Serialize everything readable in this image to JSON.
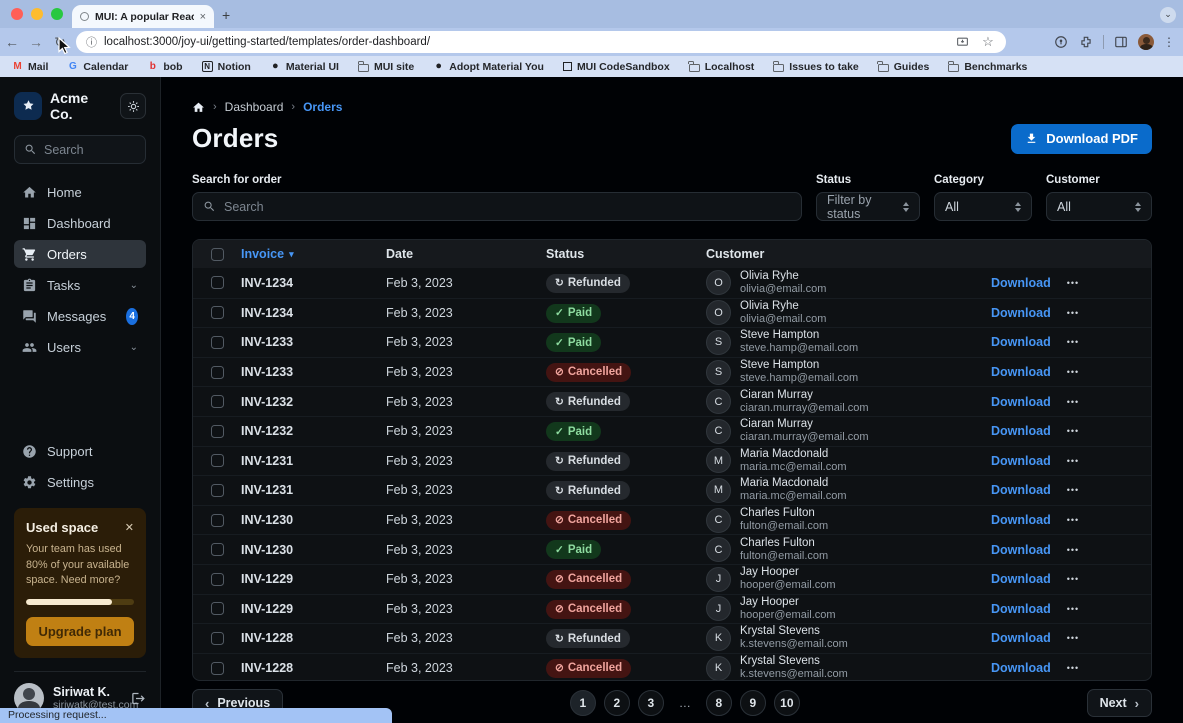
{
  "browser": {
    "tab_title": "MUI: A popular React UI fram",
    "url": "localhost:3000/joy-ui/getting-started/templates/order-dashboard/",
    "bookmarks": [
      {
        "label": "Mail",
        "icon": "gmail-icon"
      },
      {
        "label": "Calendar",
        "icon": "google-calendar-icon"
      },
      {
        "label": "bob",
        "icon": "bob-icon"
      },
      {
        "label": "Notion",
        "icon": "notion-icon"
      },
      {
        "label": "Material UI",
        "icon": "github-icon"
      },
      {
        "label": "MUI site",
        "icon": "folder-icon"
      },
      {
        "label": "Adopt Material You",
        "icon": "github-icon"
      },
      {
        "label": "MUI CodeSandbox",
        "icon": "codesandbox-icon"
      },
      {
        "label": "Localhost",
        "icon": "folder-icon"
      },
      {
        "label": "Issues to take",
        "icon": "folder-icon"
      },
      {
        "label": "Guides",
        "icon": "folder-icon"
      },
      {
        "label": "Benchmarks",
        "icon": "folder-icon"
      }
    ],
    "status_bar": "Processing request..."
  },
  "sidebar": {
    "brand": "Acme Co.",
    "search_placeholder": "Search",
    "nav": [
      {
        "label": "Home"
      },
      {
        "label": "Dashboard"
      },
      {
        "label": "Orders",
        "selected": true
      },
      {
        "label": "Tasks",
        "chevron": true
      },
      {
        "label": "Messages",
        "badge": "4"
      },
      {
        "label": "Users",
        "chevron": true
      }
    ],
    "support_label": "Support",
    "settings_label": "Settings",
    "usage_card": {
      "title": "Used space",
      "body": "Your team has used 80% of your available space. Need more?",
      "percent_used": 80,
      "button_label": "Upgrade plan"
    },
    "user": {
      "name": "Siriwat K.",
      "email": "siriwatk@test.com"
    }
  },
  "main": {
    "breadcrumb": {
      "item1": "Dashboard",
      "item2": "Orders"
    },
    "title": "Orders",
    "download_pdf_label": "Download PDF",
    "filters": {
      "search_label": "Search for order",
      "search_placeholder": "Search",
      "status_label": "Status",
      "status_value": "Filter by status",
      "category_label": "Category",
      "category_value": "All",
      "customer_label": "Customer",
      "customer_value": "All"
    },
    "table": {
      "columns": {
        "invoice": "Invoice",
        "date": "Date",
        "status": "Status",
        "customer": "Customer"
      },
      "download_label": "Download",
      "rows": [
        {
          "invoice": "INV-1234",
          "date": "Feb 3, 2023",
          "status": "Refunded",
          "status_type": "refunded",
          "status_icon": "autorenew-icon",
          "customer": {
            "initial": "O",
            "name": "Olivia Ryhe",
            "email": "olivia@email.com"
          }
        },
        {
          "invoice": "INV-1234",
          "date": "Feb 3, 2023",
          "status": "Paid",
          "status_type": "paid",
          "status_icon": "check-icon",
          "customer": {
            "initial": "O",
            "name": "Olivia Ryhe",
            "email": "olivia@email.com"
          }
        },
        {
          "invoice": "INV-1233",
          "date": "Feb 3, 2023",
          "status": "Paid",
          "status_type": "paid",
          "status_icon": "check-icon",
          "customer": {
            "initial": "S",
            "name": "Steve Hampton",
            "email": "steve.hamp@email.com"
          }
        },
        {
          "invoice": "INV-1233",
          "date": "Feb 3, 2023",
          "status": "Cancelled",
          "status_type": "cancelled",
          "status_icon": "block-icon",
          "customer": {
            "initial": "S",
            "name": "Steve Hampton",
            "email": "steve.hamp@email.com"
          }
        },
        {
          "invoice": "INV-1232",
          "date": "Feb 3, 2023",
          "status": "Refunded",
          "status_type": "refunded",
          "status_icon": "autorenew-icon",
          "customer": {
            "initial": "C",
            "name": "Ciaran Murray",
            "email": "ciaran.murray@email.com"
          }
        },
        {
          "invoice": "INV-1232",
          "date": "Feb 3, 2023",
          "status": "Paid",
          "status_type": "paid",
          "status_icon": "check-icon",
          "customer": {
            "initial": "C",
            "name": "Ciaran Murray",
            "email": "ciaran.murray@email.com"
          }
        },
        {
          "invoice": "INV-1231",
          "date": "Feb 3, 2023",
          "status": "Refunded",
          "status_type": "refunded",
          "status_icon": "autorenew-icon",
          "customer": {
            "initial": "M",
            "name": "Maria Macdonald",
            "email": "maria.mc@email.com"
          }
        },
        {
          "invoice": "INV-1231",
          "date": "Feb 3, 2023",
          "status": "Refunded",
          "status_type": "refunded",
          "status_icon": "autorenew-icon",
          "customer": {
            "initial": "M",
            "name": "Maria Macdonald",
            "email": "maria.mc@email.com"
          }
        },
        {
          "invoice": "INV-1230",
          "date": "Feb 3, 2023",
          "status": "Cancelled",
          "status_type": "cancelled",
          "status_icon": "block-icon",
          "customer": {
            "initial": "C",
            "name": "Charles Fulton",
            "email": "fulton@email.com"
          }
        },
        {
          "invoice": "INV-1230",
          "date": "Feb 3, 2023",
          "status": "Paid",
          "status_type": "paid",
          "status_icon": "check-icon",
          "customer": {
            "initial": "C",
            "name": "Charles Fulton",
            "email": "fulton@email.com"
          }
        },
        {
          "invoice": "INV-1229",
          "date": "Feb 3, 2023",
          "status": "Cancelled",
          "status_type": "cancelled",
          "status_icon": "block-icon",
          "customer": {
            "initial": "J",
            "name": "Jay Hooper",
            "email": "hooper@email.com"
          }
        },
        {
          "invoice": "INV-1229",
          "date": "Feb 3, 2023",
          "status": "Cancelled",
          "status_type": "cancelled",
          "status_icon": "block-icon",
          "customer": {
            "initial": "J",
            "name": "Jay Hooper",
            "email": "hooper@email.com"
          }
        },
        {
          "invoice": "INV-1228",
          "date": "Feb 3, 2023",
          "status": "Refunded",
          "status_type": "refunded",
          "status_icon": "autorenew-icon",
          "customer": {
            "initial": "K",
            "name": "Krystal Stevens",
            "email": "k.stevens@email.com"
          }
        },
        {
          "invoice": "INV-1228",
          "date": "Feb 3, 2023",
          "status": "Cancelled",
          "status_type": "cancelled",
          "status_icon": "block-icon",
          "customer": {
            "initial": "K",
            "name": "Krystal Stevens",
            "email": "k.stevens@email.com"
          }
        }
      ]
    },
    "pagination": {
      "previous_label": "Previous",
      "next_label": "Next",
      "pages": [
        {
          "label": "1",
          "type": "current"
        },
        {
          "label": "2",
          "type": "page"
        },
        {
          "label": "3",
          "type": "page"
        },
        {
          "label": "…",
          "type": "ellipsis"
        },
        {
          "label": "8",
          "type": "page"
        },
        {
          "label": "9",
          "type": "page"
        },
        {
          "label": "10",
          "type": "page"
        }
      ]
    }
  },
  "icons": {
    "gmail-icon": "M",
    "google-calendar-icon": "G",
    "bob-icon": "b",
    "notion-icon": "N",
    "github-icon": "●",
    "codesandbox-icon": "",
    "folder-icon": "",
    "close": "×",
    "new_tab": "+",
    "tab_chevron": "⌄",
    "back": "←",
    "forward": "→",
    "reload": "↻",
    "info": "ⓘ",
    "star": "☆",
    "menu_dots": "⋮",
    "more": "•••",
    "sort": "▾",
    "sep": "›",
    "prev": "‹",
    "next": "›",
    "check-icon": "✓",
    "autorenew-icon": "↻",
    "block-icon": "⊘",
    "card_close": "✕"
  },
  "colors": {
    "accent": "#0a6bcb",
    "link": "#4796f5",
    "paid": "#8edca0",
    "cancelled": "#f0a49d",
    "warning_card": "#2b1d08"
  }
}
